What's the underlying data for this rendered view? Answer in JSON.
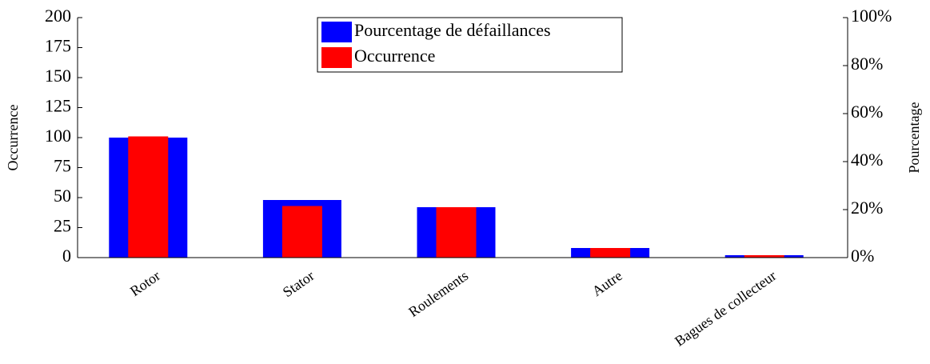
{
  "chart_data": {
    "type": "bar",
    "categories": [
      "Rotor",
      "Stator",
      "Roulements",
      "Autre",
      "Bagues de collecteur"
    ],
    "series": [
      {
        "name": "Pourcentage de défaillances",
        "color": "#0000ff",
        "axis": "y2",
        "values": [
          50,
          24,
          21,
          4,
          1
        ]
      },
      {
        "name": "Occurrence",
        "color": "#ff0000",
        "values": [
          101,
          43,
          42,
          8,
          2
        ]
      }
    ],
    "y_label": "Occurrence",
    "y2_label": "Pourcentage",
    "ylim": [
      0,
      200
    ],
    "yticks": [
      0,
      25,
      50,
      75,
      100,
      125,
      150,
      175,
      200
    ],
    "y2lim": [
      0,
      100
    ],
    "y2ticks": [
      {
        "value": 0,
        "label": "0%"
      },
      {
        "value": 20,
        "label": "20%"
      },
      {
        "value": 40,
        "label": "40%"
      },
      {
        "value": 60,
        "label": "60%"
      },
      {
        "value": 80,
        "label": "80%"
      },
      {
        "value": 100,
        "label": "100%"
      }
    ],
    "legend": "top"
  }
}
